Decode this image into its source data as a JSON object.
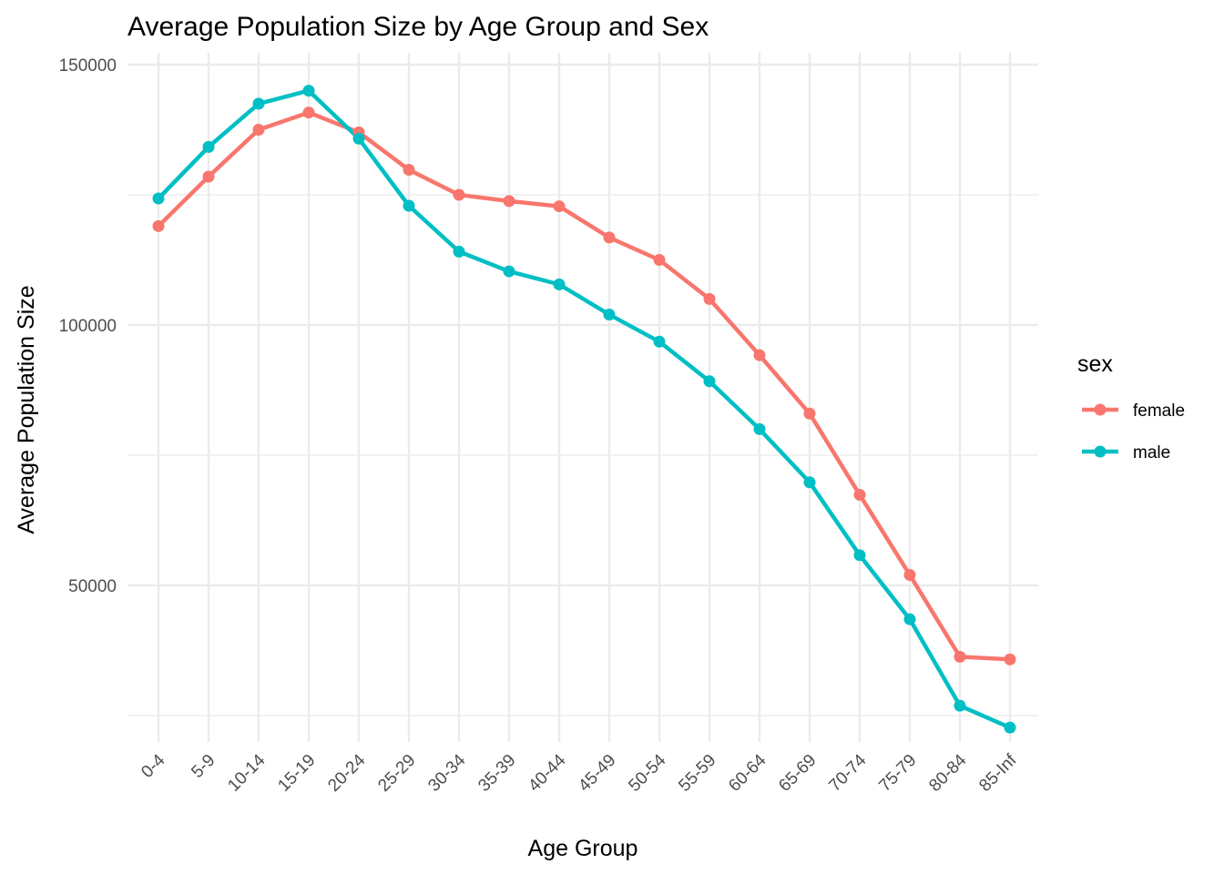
{
  "chart_data": {
    "type": "line",
    "title": "Average Population Size by Age Group and Sex",
    "xlabel": "Age Group",
    "ylabel": "Average Population Size",
    "categories": [
      "0-4",
      "5-9",
      "10-14",
      "15-19",
      "20-24",
      "25-29",
      "30-34",
      "35-39",
      "40-44",
      "45-49",
      "50-54",
      "55-59",
      "60-64",
      "65-69",
      "70-74",
      "75-79",
      "80-84",
      "85-Inf"
    ],
    "y_ticks": [
      50000,
      100000,
      150000
    ],
    "y_tick_labels": [
      "50000",
      "100000",
      "150000"
    ],
    "ylim": [
      23000,
      152000
    ],
    "grid": true,
    "legend_title": "sex",
    "legend_position": "right",
    "series": [
      {
        "name": "female",
        "color": "#F8766D",
        "values": [
          119000,
          128500,
          137500,
          140800,
          137000,
          129800,
          125000,
          123800,
          122800,
          116800,
          112500,
          105000,
          94200,
          83000,
          67400,
          52000,
          36300,
          35800
        ]
      },
      {
        "name": "male",
        "color": "#00BFC4",
        "values": [
          124300,
          134200,
          142500,
          145000,
          135800,
          122900,
          114100,
          110300,
          107800,
          102000,
          96800,
          89200,
          80000,
          69800,
          55800,
          43500,
          26900,
          22700
        ]
      }
    ]
  }
}
